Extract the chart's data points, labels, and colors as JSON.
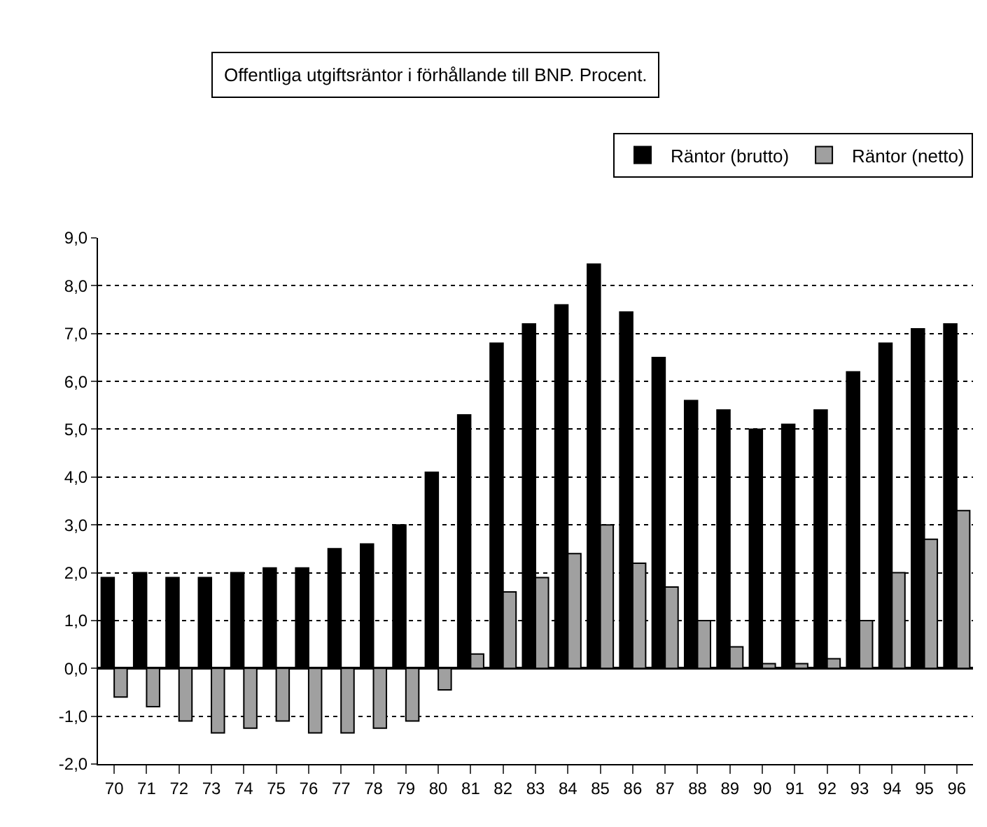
{
  "chart_data": {
    "type": "bar",
    "title": "Offentliga utgiftsräntor i förhållande till BNP. Procent.",
    "categories": [
      "70",
      "71",
      "72",
      "73",
      "74",
      "75",
      "76",
      "77",
      "78",
      "79",
      "80",
      "81",
      "82",
      "83",
      "84",
      "85",
      "86",
      "87",
      "88",
      "89",
      "90",
      "91",
      "92",
      "93",
      "94",
      "95",
      "96"
    ],
    "series": [
      {
        "name": "Räntor (brutto)",
        "color": "#000000",
        "values": [
          1.9,
          2.0,
          1.9,
          1.9,
          2.0,
          2.1,
          2.1,
          2.5,
          2.6,
          3.0,
          4.1,
          5.3,
          6.8,
          7.2,
          7.6,
          8.45,
          7.45,
          6.5,
          5.6,
          5.4,
          5.0,
          5.1,
          5.4,
          6.2,
          6.8,
          7.1,
          7.2
        ]
      },
      {
        "name": "Räntor (netto)",
        "color": "#a0a0a0",
        "values": [
          -0.6,
          -0.8,
          -1.1,
          -1.35,
          -1.25,
          -1.1,
          -1.35,
          -1.35,
          -1.25,
          -1.1,
          -0.45,
          0.3,
          1.6,
          1.9,
          2.4,
          3.0,
          2.2,
          1.7,
          1.0,
          0.45,
          0.1,
          0.1,
          0.2,
          1.0,
          2.0,
          2.7,
          3.3
        ]
      }
    ],
    "ylim": [
      -2,
      9
    ],
    "yticks": [
      {
        "value": -2,
        "label": "-2,0"
      },
      {
        "value": -1,
        "label": "-1,0"
      },
      {
        "value": 0,
        "label": "0,0"
      },
      {
        "value": 1,
        "label": "1,0"
      },
      {
        "value": 2,
        "label": "2,0"
      },
      {
        "value": 3,
        "label": "3,0"
      },
      {
        "value": 4,
        "label": "4,0"
      },
      {
        "value": 5,
        "label": "5,0"
      },
      {
        "value": 6,
        "label": "6,0"
      },
      {
        "value": 7,
        "label": "7,0"
      },
      {
        "value": 8,
        "label": "8,0"
      },
      {
        "value": 9,
        "label": "9,0"
      }
    ],
    "grid": "y",
    "legend": "top right",
    "line_style": "dotted"
  }
}
